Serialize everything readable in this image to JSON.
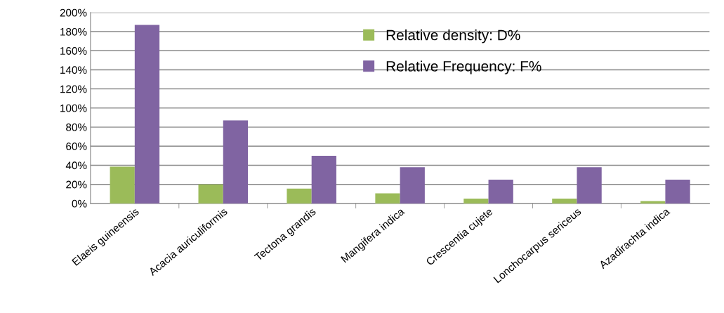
{
  "chart_data": {
    "type": "bar",
    "categories": [
      "Elaeis guineensis",
      "Acacia auriculiformis",
      "Tectona grandis",
      "Mangifera indica",
      "Crescentia cujete",
      "Lonchocarpus sericeus",
      "Azadirachta indica"
    ],
    "series": [
      {
        "name": "Relative density: D%",
        "color": "#9bbb59",
        "values": [
          38.5,
          20,
          15.5,
          10.5,
          5,
          5,
          2.5
        ]
      },
      {
        "name": "Relative Frequency: F%",
        "color": "#8064a2",
        "values": [
          187,
          87,
          50,
          38,
          25,
          38,
          25
        ]
      }
    ],
    "ylim": [
      0,
      200
    ],
    "yticks": [
      {
        "value": 0,
        "label": "0%"
      },
      {
        "value": 20,
        "label": "20%"
      },
      {
        "value": 40,
        "label": "40%"
      },
      {
        "value": 60,
        "label": "60%"
      },
      {
        "value": 80,
        "label": "80%"
      },
      {
        "value": 100,
        "label": "100%"
      },
      {
        "value": 120,
        "label": "120%"
      },
      {
        "value": 140,
        "label": "140%"
      },
      {
        "value": 160,
        "label": "160%"
      },
      {
        "value": 180,
        "label": "180%"
      },
      {
        "value": 200,
        "label": "200%"
      }
    ],
    "grid": "y",
    "legend": "top"
  }
}
